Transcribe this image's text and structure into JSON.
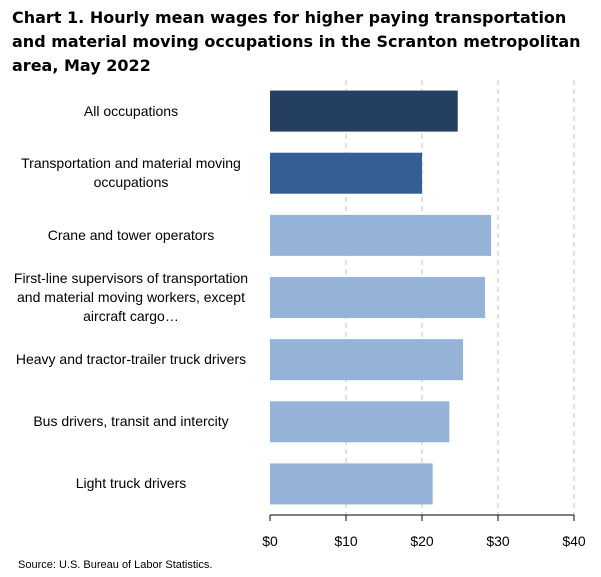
{
  "chart_data": {
    "type": "bar",
    "orientation": "horizontal",
    "title": "Chart 1. Hourly mean wages for higher paying transportation and material moving occupations in the Scranton metropolitan area, May 2022",
    "categories": [
      "All occupations",
      "Transportation and material moving occupations",
      "Crane and tower operators",
      "First-line supervisors of transportation and material moving workers, except aircraft cargo…",
      "Heavy and tractor-trailer truck drivers",
      "Bus drivers, transit and intercity",
      "Light truck drivers"
    ],
    "values": [
      24.7,
      20.0,
      29.1,
      28.3,
      25.4,
      23.6,
      21.4
    ],
    "bar_colors": [
      "#243f60",
      "#345e95",
      "#95b3d7",
      "#95b3d7",
      "#95b3d7",
      "#95b3d7",
      "#95b3d7"
    ],
    "x_ticks": [
      0,
      10,
      20,
      30,
      40
    ],
    "x_tick_labels": [
      "$0",
      "$10",
      "$20",
      "$30",
      "$40"
    ],
    "xlim": [
      0,
      40
    ],
    "xlabel": "",
    "ylabel": "",
    "grid": "vertical dashed",
    "legend": "none",
    "source": "Source: U.S. Bureau of Labor Statistics."
  }
}
